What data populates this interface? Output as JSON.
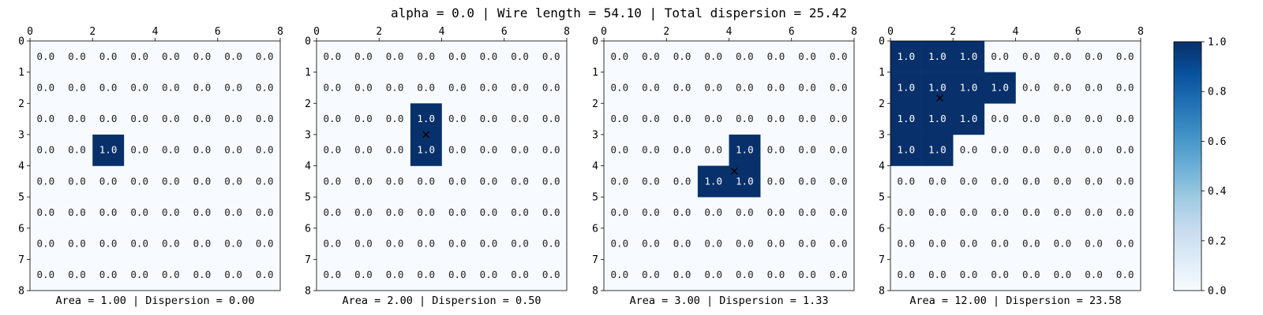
{
  "title": "alpha = 0.0 | Wire length = 54.10 | Total dispersion = 25.42",
  "colors": {
    "low": "#f7fbff",
    "high": "#08306b",
    "marker": "#000000"
  },
  "colorbar": {
    "ticks": [
      "0.0",
      "0.2",
      "0.4",
      "0.6",
      "0.8",
      "1.0"
    ],
    "range": [
      0,
      1
    ]
  },
  "chart_data": [
    {
      "type": "heatmap",
      "xlabel": "Area = 1.00 | Dispersion = 0.00",
      "x_ticks": [
        "0",
        "2",
        "4",
        "6",
        "8"
      ],
      "y_ticks": [
        "0",
        "1",
        "2",
        "3",
        "4",
        "5",
        "6",
        "7",
        "8"
      ],
      "grid_size": [
        8,
        8
      ],
      "cell_label": "0.0",
      "active_label": "1.0",
      "active_cells": [
        [
          3,
          2
        ]
      ],
      "centroid": null
    },
    {
      "type": "heatmap",
      "xlabel": "Area = 2.00 | Dispersion = 0.50",
      "x_ticks": [
        "0",
        "2",
        "4",
        "6",
        "8"
      ],
      "y_ticks": [
        "0",
        "1",
        "2",
        "3",
        "4",
        "5",
        "6",
        "7",
        "8"
      ],
      "grid_size": [
        8,
        8
      ],
      "cell_label": "0.0",
      "active_label": "1.0",
      "active_cells": [
        [
          2,
          3
        ],
        [
          3,
          3
        ]
      ],
      "centroid": [
        3.5,
        3.0
      ]
    },
    {
      "type": "heatmap",
      "xlabel": "Area = 3.00 | Dispersion = 1.33",
      "x_ticks": [
        "0",
        "2",
        "4",
        "6",
        "8"
      ],
      "y_ticks": [
        "0",
        "1",
        "2",
        "3",
        "4",
        "5",
        "6",
        "7",
        "8"
      ],
      "grid_size": [
        8,
        8
      ],
      "cell_label": "0.0",
      "active_label": "1.0",
      "active_cells": [
        [
          3,
          4
        ],
        [
          4,
          3
        ],
        [
          4,
          4
        ]
      ],
      "centroid": [
        4.17,
        4.17
      ]
    },
    {
      "type": "heatmap",
      "xlabel": "Area = 12.00 | Dispersion = 23.58",
      "x_ticks": [
        "0",
        "2",
        "4",
        "6",
        "8"
      ],
      "y_ticks": [
        "0",
        "1",
        "2",
        "3",
        "4",
        "5",
        "6",
        "7",
        "8"
      ],
      "grid_size": [
        8,
        8
      ],
      "cell_label": "0.0",
      "active_label": "1.0",
      "active_cells": [
        [
          0,
          0
        ],
        [
          0,
          1
        ],
        [
          0,
          2
        ],
        [
          1,
          0
        ],
        [
          1,
          1
        ],
        [
          1,
          2
        ],
        [
          1,
          3
        ],
        [
          2,
          0
        ],
        [
          2,
          1
        ],
        [
          2,
          2
        ],
        [
          3,
          0
        ],
        [
          3,
          1
        ]
      ],
      "centroid": [
        1.58,
        1.83
      ]
    }
  ]
}
